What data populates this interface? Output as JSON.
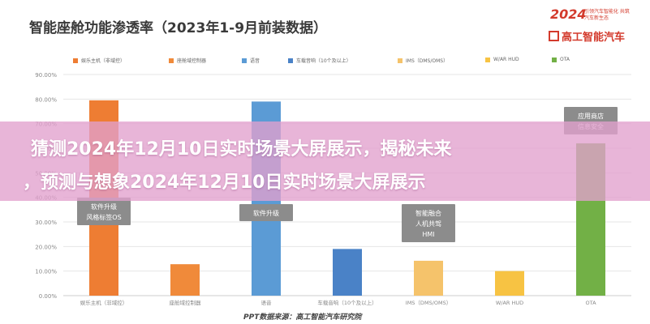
{
  "header": {
    "title": "智能座舱功能渗透率（2023年1-9月前装数据）",
    "logo_year": "2024",
    "logo_tagline": "引领汽车智能化 共筑汽车新生态",
    "logo_name": "高工智能汽车"
  },
  "banner": {
    "line1": "猜测2024年12月10日实时场景大屏展示，揭秘未来",
    "line2": "，预测与想象2024年12月10日实时场景大屏展示"
  },
  "source_label": "PPT数据来源：高工智能汽车研究院",
  "colors": {
    "grid": "#e6e6e6",
    "axis_text": "#888888",
    "note_bg": "#8c8c8c",
    "note_text": "#ffffff"
  },
  "chart_data": {
    "type": "bar",
    "title": "智能座舱功能渗透率（2023年1-9月前装数据）",
    "categories": [
      "娱乐主机（非域控）",
      "座舱域控制器",
      "语音",
      "车载音响（10个及以上）",
      "IMS（DMS/OMS）",
      "W/AR HUD",
      "OTA"
    ],
    "values": [
      0.795,
      0.128,
      0.79,
      0.19,
      0.142,
      0.1,
      0.62
    ],
    "colors": [
      "#ee7d33",
      "#f08a3a",
      "#5b9bd5",
      "#4a82c7",
      "#f5c36b",
      "#f7c343",
      "#72b046"
    ],
    "legend": [
      "娱乐主机（非域控）",
      "座舱域控制器",
      "语音",
      "车载音响（10个及以上）",
      "IMS（DMS/OMS）",
      "W/AR HUD",
      "OTA"
    ],
    "ylim": [
      0,
      0.9
    ],
    "yticks": [
      "0.00%",
      "10.00%",
      "20.00%",
      "30.00%",
      "40.00%",
      "50.00%",
      "60.00%",
      "70.00%",
      "80.00%",
      "90.00%"
    ],
    "grid": true,
    "legend_position": "top",
    "annotations": [
      {
        "category_index": 0,
        "lines": [
          "软件升级",
          "风格标签OS"
        ]
      },
      {
        "category_index": 2,
        "lines": [
          "软件升级"
        ]
      },
      {
        "category_index": 4,
        "lines": [
          "智能融合",
          "人机共驾",
          "HMI"
        ]
      },
      {
        "category_index": 6,
        "lines": [
          "应用商店",
          "信息安全"
        ]
      }
    ]
  }
}
